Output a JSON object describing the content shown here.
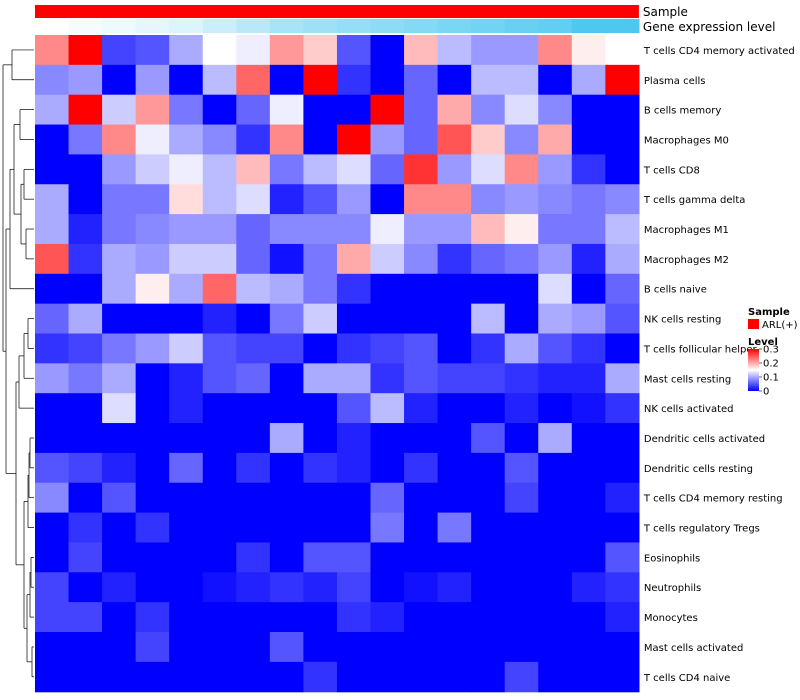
{
  "chart_data": {
    "type": "heatmap",
    "annotation_rows": [
      {
        "label": "Sample",
        "kind": "categorical",
        "color": "#ff0000"
      },
      {
        "label": "Gene expression level",
        "kind": "continuous",
        "low_color": "#ffffff",
        "high_color": "#4fc8f0"
      }
    ],
    "rows": [
      "T cells CD4 memory activated",
      "Plasma cells",
      "B cells memory",
      "Macrophages M0",
      "T cells CD8",
      "T cells gamma delta",
      "Macrophages M1",
      "Macrophages M2",
      "B cells naive",
      "NK cells resting",
      "T cells follicular helper",
      "Mast cells resting",
      "NK cells activated",
      "Dendritic cells activated",
      "Dendritic cells resting",
      "T cells CD4 memory resting",
      "T cells regulatory  Tregs",
      "Eosinophils",
      "Neutrophils",
      "Monocytes",
      "Mast cells activated",
      "T cells CD4 naive"
    ],
    "n_columns": 18,
    "values": [
      [
        0.22,
        0.3,
        0.04,
        0.05,
        0.1,
        0.15,
        0.14,
        0.21,
        0.18,
        0.05,
        0.0,
        0.19,
        0.11,
        0.09,
        0.09,
        0.22,
        0.16,
        0.15
      ],
      [
        0.08,
        0.09,
        0.0,
        0.09,
        0.0,
        0.11,
        0.24,
        0.0,
        0.3,
        0.03,
        0.0,
        0.06,
        0.0,
        0.11,
        0.11,
        0.0,
        0.1,
        0.3
      ],
      [
        0.1,
        0.3,
        0.12,
        0.21,
        0.07,
        0.0,
        0.06,
        0.14,
        0.0,
        0.0,
        0.3,
        0.06,
        0.2,
        0.08,
        0.13,
        0.08,
        0.0,
        0.0
      ],
      [
        0.0,
        0.07,
        0.22,
        0.14,
        0.1,
        0.08,
        0.03,
        0.22,
        0.0,
        0.3,
        0.09,
        0.06,
        0.25,
        0.18,
        0.08,
        0.2,
        0.0,
        0.0
      ],
      [
        0.0,
        0.0,
        0.09,
        0.12,
        0.14,
        0.11,
        0.19,
        0.07,
        0.11,
        0.13,
        0.06,
        0.27,
        0.09,
        0.13,
        0.22,
        0.09,
        0.03,
        0.0
      ],
      [
        0.1,
        0.0,
        0.07,
        0.07,
        0.17,
        0.11,
        0.13,
        0.02,
        0.05,
        0.09,
        0.0,
        0.22,
        0.22,
        0.08,
        0.09,
        0.08,
        0.07,
        0.08
      ],
      [
        0.1,
        0.02,
        0.07,
        0.08,
        0.09,
        0.09,
        0.06,
        0.08,
        0.08,
        0.08,
        0.14,
        0.09,
        0.09,
        0.19,
        0.16,
        0.07,
        0.07,
        0.11
      ],
      [
        0.25,
        0.03,
        0.1,
        0.09,
        0.12,
        0.12,
        0.06,
        0.01,
        0.07,
        0.2,
        0.12,
        0.08,
        0.03,
        0.06,
        0.07,
        0.09,
        0.02,
        0.1
      ],
      [
        0.0,
        0.0,
        0.1,
        0.16,
        0.1,
        0.24,
        0.11,
        0.1,
        0.07,
        0.03,
        0.0,
        0.0,
        0.0,
        0.0,
        0.0,
        0.13,
        0.0,
        0.06
      ],
      [
        0.06,
        0.1,
        0.0,
        0.0,
        0.0,
        0.02,
        0.0,
        0.07,
        0.12,
        0.0,
        0.0,
        0.0,
        0.0,
        0.11,
        0.0,
        0.1,
        0.09,
        0.05
      ],
      [
        0.03,
        0.04,
        0.07,
        0.09,
        0.12,
        0.05,
        0.04,
        0.04,
        0.0,
        0.03,
        0.04,
        0.05,
        0.0,
        0.03,
        0.1,
        0.05,
        0.03,
        0.0
      ],
      [
        0.09,
        0.07,
        0.1,
        0.0,
        0.02,
        0.05,
        0.06,
        0.0,
        0.1,
        0.1,
        0.03,
        0.05,
        0.04,
        0.04,
        0.03,
        0.02,
        0.02,
        0.1
      ],
      [
        0.0,
        0.0,
        0.13,
        0.0,
        0.02,
        0.0,
        0.0,
        0.0,
        0.0,
        0.05,
        0.11,
        0.02,
        0.0,
        0.0,
        0.02,
        0.0,
        0.01,
        0.03
      ],
      [
        0.0,
        0.0,
        0.0,
        0.0,
        0.0,
        0.0,
        0.0,
        0.1,
        0.0,
        0.02,
        0.0,
        0.0,
        0.0,
        0.05,
        0.0,
        0.1,
        0.0,
        0.0
      ],
      [
        0.05,
        0.04,
        0.02,
        0.0,
        0.06,
        0.0,
        0.03,
        0.0,
        0.03,
        0.02,
        0.0,
        0.03,
        0.0,
        0.0,
        0.05,
        0.0,
        0.0,
        0.0
      ],
      [
        0.08,
        0.0,
        0.05,
        0.0,
        0.0,
        0.0,
        0.0,
        0.0,
        0.0,
        0.0,
        0.06,
        0.0,
        0.0,
        0.0,
        0.04,
        0.0,
        0.0,
        0.02
      ],
      [
        0.0,
        0.03,
        0.0,
        0.03,
        0.0,
        0.0,
        0.0,
        0.0,
        0.0,
        0.0,
        0.07,
        0.0,
        0.07,
        0.0,
        0.0,
        0.0,
        0.0,
        0.0
      ],
      [
        0.0,
        0.04,
        0.0,
        0.0,
        0.0,
        0.0,
        0.03,
        0.0,
        0.05,
        0.05,
        0.0,
        0.0,
        0.0,
        0.0,
        0.0,
        0.0,
        0.0,
        0.05
      ],
      [
        0.04,
        0.0,
        0.02,
        0.0,
        0.0,
        0.01,
        0.02,
        0.03,
        0.02,
        0.04,
        0.0,
        0.01,
        0.02,
        0.0,
        0.0,
        0.0,
        0.02,
        0.03
      ],
      [
        0.04,
        0.04,
        0.0,
        0.03,
        0.0,
        0.0,
        0.0,
        0.0,
        0.0,
        0.03,
        0.02,
        0.0,
        0.0,
        0.0,
        0.0,
        0.0,
        0.0,
        0.02
      ],
      [
        0.0,
        0.0,
        0.0,
        0.04,
        0.0,
        0.0,
        0.0,
        0.05,
        0.0,
        0.0,
        0.0,
        0.0,
        0.0,
        0.0,
        0.0,
        0.0,
        0.0,
        0.0
      ],
      [
        0.0,
        0.0,
        0.0,
        0.0,
        0.0,
        0.0,
        0.0,
        0.0,
        0.03,
        0.0,
        0.0,
        0.0,
        0.0,
        0.0,
        0.04,
        0.0,
        0.0,
        0.0
      ]
    ],
    "gene_expression_levels": [
      0.0,
      0.05,
      0.1,
      0.15,
      0.2,
      0.3,
      0.4,
      0.5,
      0.55,
      0.6,
      0.65,
      0.7,
      0.75,
      0.8,
      0.85,
      0.9,
      1.0,
      1.0
    ],
    "color_scale": {
      "low": "#0000ff",
      "mid": "#ffffff",
      "high": "#ff0000",
      "range": [
        0,
        0.3
      ]
    },
    "row_dendrogram": true,
    "legend": {
      "placement": "right",
      "sample_title": "Sample",
      "sample_entries": [
        {
          "label": "ARL(+)",
          "color": "#ff0000"
        }
      ],
      "level_title": "Level",
      "level_ticks": [
        {
          "value": 0.3,
          "label": "0.3"
        },
        {
          "value": 0.2,
          "label": "0.2"
        },
        {
          "value": 0.1,
          "label": "0.1"
        },
        {
          "value": 0.0,
          "label": "0"
        }
      ]
    }
  }
}
